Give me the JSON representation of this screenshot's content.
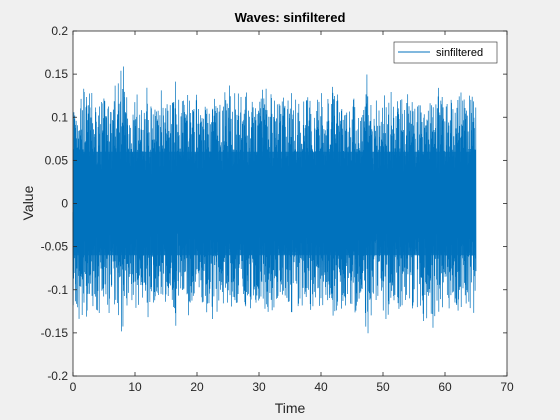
{
  "chart_data": {
    "type": "line",
    "title": "Waves: sinfiltered",
    "xlabel": "Time",
    "ylabel": "Value",
    "xlim": [
      0,
      70
    ],
    "ylim": [
      -0.2,
      0.2
    ],
    "xticks": [
      0,
      10,
      20,
      30,
      40,
      50,
      60,
      70
    ],
    "yticks": [
      -0.2,
      -0.15,
      -0.1,
      -0.05,
      0,
      0.05,
      0.1,
      0.15,
      0.2
    ],
    "xtick_labels": [
      "0",
      "10",
      "20",
      "30",
      "40",
      "50",
      "60",
      "70"
    ],
    "ytick_labels": [
      "-0.2",
      "-0.15",
      "-0.1",
      "-0.05",
      "0",
      "0.05",
      "0.1",
      "0.15",
      "0.2"
    ],
    "grid": false,
    "legend_position": "top-right",
    "series": [
      {
        "name": "sinfiltered",
        "color": "#0072bd",
        "x_range": [
          0,
          65
        ],
        "values": [
          0.0,
          0.121,
          -0.141,
          0.132,
          -0.128,
          0.126,
          -0.123,
          0.122,
          -0.118,
          0.124,
          -0.129,
          0.119,
          -0.132,
          0.137,
          -0.164,
          0.128,
          -0.117,
          0.12,
          -0.121,
          0.124,
          -0.113,
          0.132,
          -0.128,
          0.119,
          -0.123,
          0.126,
          -0.124,
          0.123,
          -0.122,
          0.167,
          -0.116,
          0.123,
          -0.121,
          0.125,
          -0.126,
          0.121,
          -0.123,
          0.12,
          -0.119,
          0.121,
          -0.129,
          0.122,
          -0.121,
          0.122,
          -0.12,
          0.132,
          -0.129,
          0.124,
          -0.122,
          0.123,
          -0.125,
          0.122,
          -0.118,
          0.121,
          -0.152,
          0.125,
          -0.126,
          0.131,
          -0.123,
          0.124,
          -0.125,
          0.123,
          -0.128,
          0.121,
          -0.127,
          0.124,
          -0.121,
          0.122,
          -0.122,
          0.125,
          -0.13,
          0.122,
          -0.12,
          0.127,
          -0.133,
          0.126,
          -0.121,
          0.124,
          -0.123,
          0.122,
          -0.126,
          0.124,
          -0.126,
          0.128,
          -0.16,
          0.123,
          -0.122,
          0.124,
          -0.121,
          0.125,
          -0.125,
          0.126,
          -0.124,
          0.123,
          -0.124,
          0.122,
          -0.127,
          0.124,
          -0.125,
          0.124,
          -0.139,
          0.127,
          -0.124,
          0.143,
          -0.128,
          0.123,
          -0.121,
          0.122,
          -0.123,
          0.115,
          -0.128,
          0.121,
          -0.12,
          0.124,
          -0.126,
          0.119
        ]
      }
    ]
  }
}
